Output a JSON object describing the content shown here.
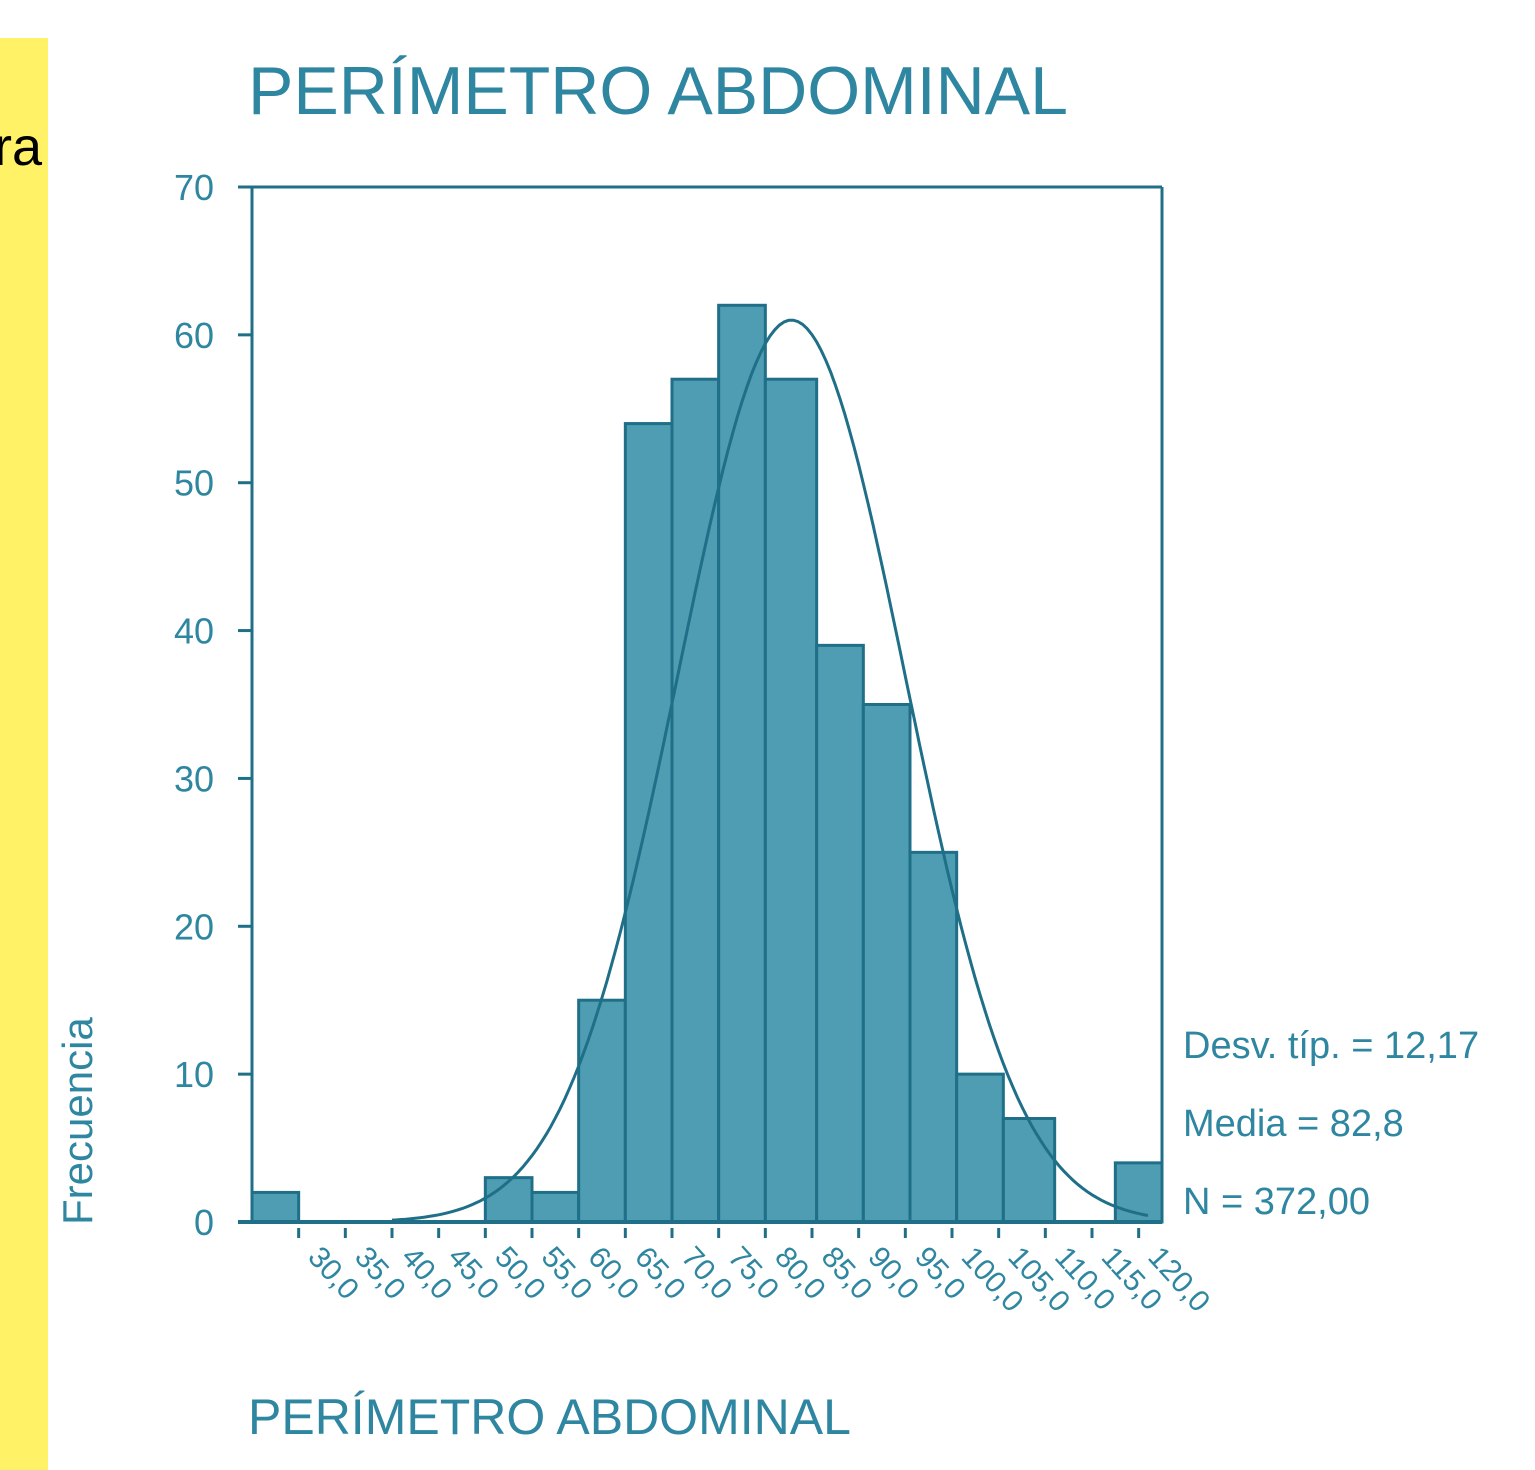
{
  "side_panel": {
    "text": "ra",
    "color": "#fff267"
  },
  "chart_data": {
    "type": "bar",
    "title": "PERÍMETRO ABDOMINAL",
    "xlabel": "PERÍMETRO ABDOMINAL",
    "ylabel": "Frecuencia",
    "ylim": [
      0,
      70
    ],
    "yticks": [
      0,
      10,
      20,
      30,
      40,
      50,
      60,
      70
    ],
    "xlim": [
      25,
      122.5
    ],
    "xticks": [
      "30,0",
      "35,0",
      "40,0",
      "45,0",
      "50,0",
      "55,0",
      "60,0",
      "65,0",
      "70,0",
      "75,0",
      "80,0",
      "85,0",
      "90,0",
      "95,0",
      "100,0",
      "105,0",
      "110,0",
      "115,0",
      "120,0"
    ],
    "bins": [
      {
        "x0": 25.0,
        "x1": 30.0,
        "count": 2
      },
      {
        "x0": 50.0,
        "x1": 55.0,
        "count": 3
      },
      {
        "x0": 55.0,
        "x1": 60.0,
        "count": 2
      },
      {
        "x0": 60.0,
        "x1": 65.0,
        "count": 15
      },
      {
        "x0": 65.0,
        "x1": 70.0,
        "count": 54
      },
      {
        "x0": 70.0,
        "x1": 75.0,
        "count": 57
      },
      {
        "x0": 75.0,
        "x1": 80.0,
        "count": 62
      },
      {
        "x0": 80.0,
        "x1": 85.5,
        "count": 57
      },
      {
        "x0": 85.5,
        "x1": 90.5,
        "count": 39
      },
      {
        "x0": 90.5,
        "x1": 95.5,
        "count": 35
      },
      {
        "x0": 95.5,
        "x1": 100.5,
        "count": 25
      },
      {
        "x0": 100.5,
        "x1": 105.5,
        "count": 10
      },
      {
        "x0": 105.5,
        "x1": 111.0,
        "count": 7
      },
      {
        "x0": 117.5,
        "x1": 122.5,
        "count": 4
      }
    ],
    "normal_curve": {
      "mean": 82.8,
      "sd": 12.17,
      "peak": 61
    },
    "grid": false,
    "legend": "none",
    "colors": {
      "bar": "#4e9db2",
      "bar_edge": "#1f6f88",
      "axis": "#1f6f88",
      "text": "#2e86a0"
    }
  },
  "stats": {
    "sd": "Desv. típ. = 12,17",
    "mean": "Media = 82,8",
    "n": "N = 372,00"
  }
}
